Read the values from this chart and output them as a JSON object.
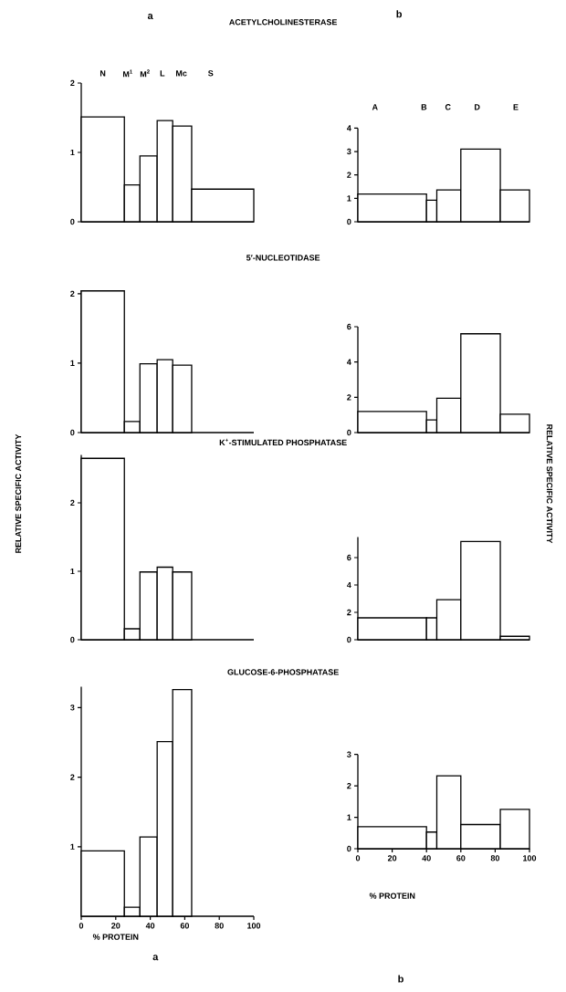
{
  "chart_data": [
    {
      "type": "histogram",
      "title": "ACETYLCHOLINESTERASE",
      "bins": [
        0,
        25,
        34,
        44,
        53,
        64,
        100
      ],
      "values": [
        1.51,
        0.53,
        0.95,
        1.46,
        1.38,
        0.47
      ],
      "xlim": [
        0,
        100
      ],
      "ylim": [
        0,
        2
      ],
      "yticks": [
        0,
        1,
        2
      ],
      "tick_labels": "y",
      "annotations": [
        "a",
        "N",
        "M$^{1}$",
        "M$^{2}$",
        "L",
        "Mc",
        "S"
      ]
    },
    {
      "type": "histogram",
      "bins": [
        0,
        40,
        46,
        60,
        83,
        100
      ],
      "values": [
        1.18,
        0.92,
        1.36,
        3.1,
        1.36
      ],
      "xlim": [
        0,
        100
      ],
      "ylim": [
        0,
        4
      ],
      "yticks": [
        0,
        1,
        2,
        3,
        4
      ],
      "tick_labels": "y",
      "annotations": [
        "b",
        "A",
        "B",
        "C",
        "D",
        "E"
      ]
    },
    {
      "type": "histogram",
      "title": "5′-NUCLEOTIDASE",
      "bins": [
        0,
        25,
        34,
        44,
        53,
        64
      ],
      "values": [
        2.04,
        0.16,
        0.99,
        1.05,
        0.97
      ],
      "xlim": [
        0,
        100
      ],
      "ylim": [
        0,
        2.05
      ],
      "yticks": [
        0,
        1,
        2
      ],
      "tick_labels": "y"
    },
    {
      "type": "histogram",
      "bins": [
        0,
        40,
        46,
        60,
        83,
        100
      ],
      "values": [
        1.2,
        0.72,
        1.95,
        5.6,
        1.04
      ],
      "xlim": [
        0,
        100
      ],
      "ylim": [
        0,
        6
      ],
      "yticks": [
        0,
        2,
        4,
        6
      ],
      "tick_labels": "y"
    },
    {
      "type": "histogram",
      "title": "K$^{+}$-STIMULATED PHOSPHATASE",
      "ylabel": "RELATIVE SPECIFIC ACTIVITY",
      "bins": [
        0,
        25,
        34,
        44,
        53,
        64
      ],
      "values": [
        2.65,
        0.16,
        0.99,
        1.06,
        0.99
      ],
      "xlim": [
        0,
        100
      ],
      "ylim": [
        0,
        2.7
      ],
      "yticks": [
        0,
        1,
        2
      ],
      "tick_labels": "y"
    },
    {
      "type": "histogram",
      "ylabel": "RELATIVE SPECIFIC ACTIVITY",
      "bins": [
        0,
        40,
        46,
        60,
        83,
        100
      ],
      "values": [
        1.6,
        1.6,
        2.93,
        7.17,
        0.25
      ],
      "xlim": [
        0,
        100
      ],
      "ylim": [
        0,
        7.5
      ],
      "yticks": [
        0,
        2,
        4,
        6
      ],
      "tick_labels": "y"
    },
    {
      "type": "histogram",
      "title": "GLUCOSE-6-PHOSPHATASE",
      "xlabel": "% PROTEIN",
      "bins": [
        0,
        25,
        34,
        44,
        53,
        64
      ],
      "values": [
        0.94,
        0.13,
        1.14,
        2.51,
        3.26
      ],
      "xlim": [
        0,
        100
      ],
      "ylim": [
        0,
        3.3
      ],
      "xticks": [
        0,
        20,
        40,
        60,
        80,
        100
      ],
      "yticks": [
        1,
        2,
        3
      ],
      "annotations": [
        "a"
      ]
    },
    {
      "type": "histogram",
      "xlabel": "% PROTEIN",
      "bins": [
        0,
        40,
        46,
        60,
        83,
        100
      ],
      "values": [
        0.7,
        0.53,
        2.32,
        0.77,
        1.25
      ],
      "xlim": [
        0,
        100
      ],
      "ylim": [
        0,
        3
      ],
      "xticks": [
        0,
        20,
        40,
        60,
        80,
        100
      ],
      "yticks": [
        0,
        1,
        2,
        3
      ],
      "annotations": [
        "b"
      ]
    }
  ]
}
